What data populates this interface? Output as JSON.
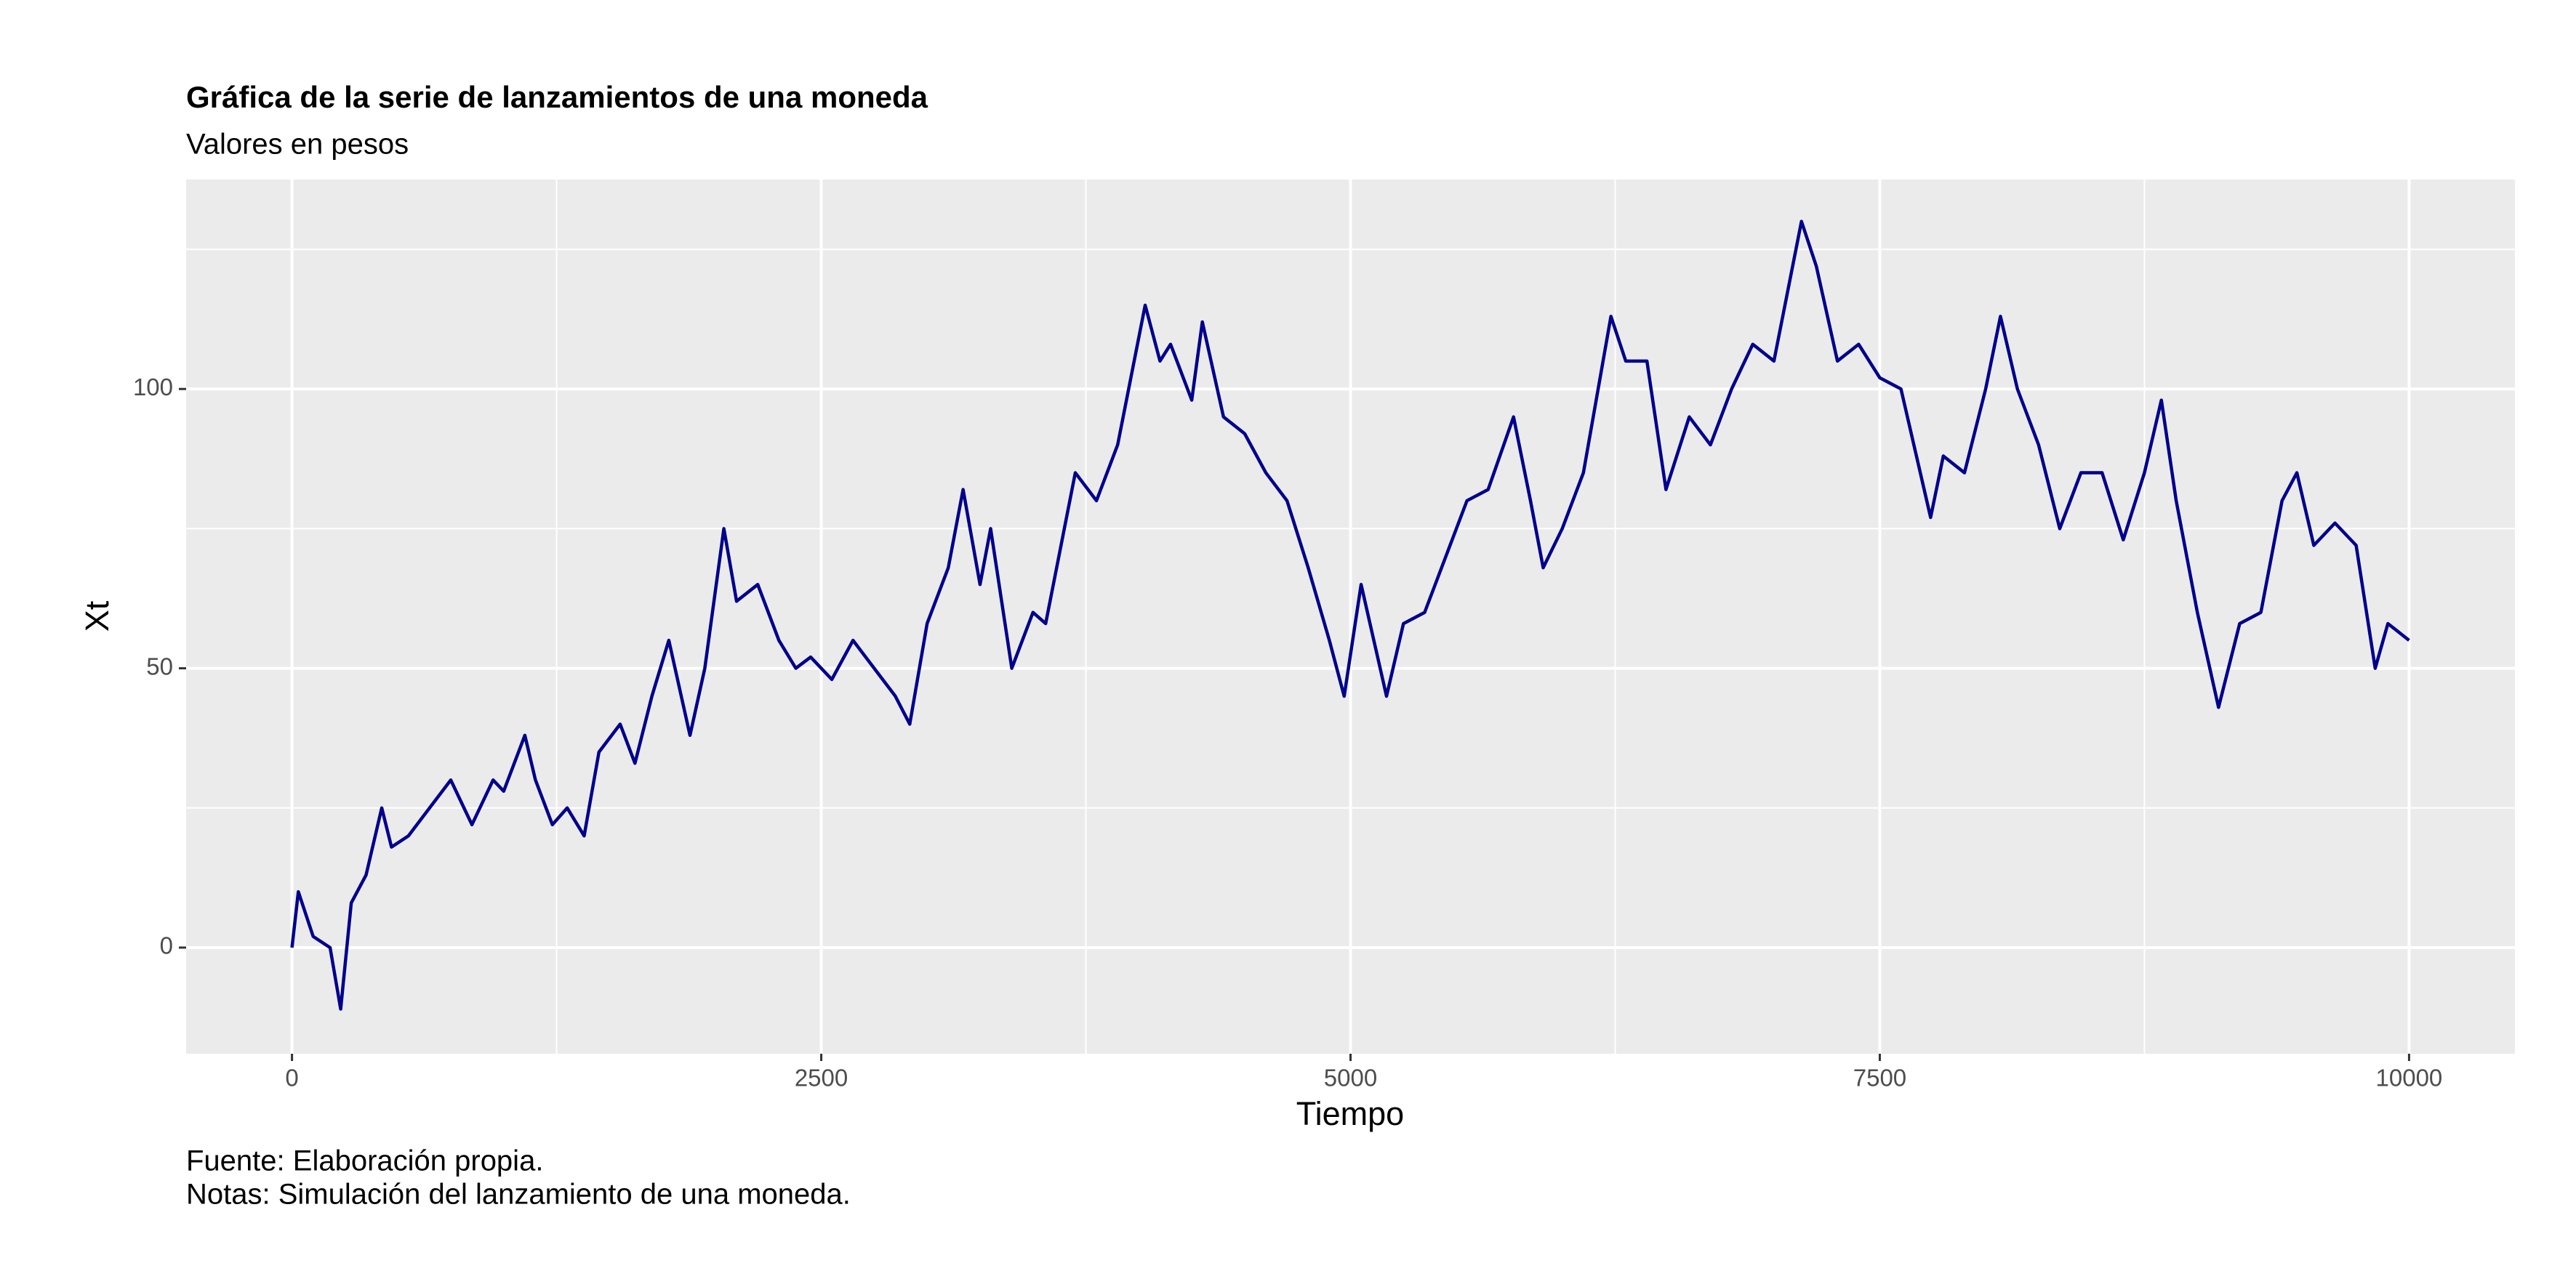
{
  "chart_data": {
    "type": "line",
    "title": "Gráfica de la serie de lanzamientos de una moneda",
    "subtitle": "Valores en pesos",
    "x_label": "Tiempo",
    "y_label": "Xt",
    "caption": [
      "Fuente: Elaboración propia.",
      "Notas: Simulación del lanzamiento de una moneda."
    ],
    "x": [
      0,
      30,
      100,
      180,
      230,
      280,
      350,
      424,
      470,
      550,
      650,
      750,
      850,
      950,
      1000,
      1100,
      1150,
      1230,
      1300,
      1380,
      1450,
      1550,
      1620,
      1700,
      1780,
      1880,
      1950,
      2040,
      2100,
      2200,
      2300,
      2380,
      2450,
      2550,
      2650,
      2750,
      2850,
      2918,
      3000,
      3100,
      3170,
      3250,
      3300,
      3400,
      3500,
      3560,
      3700,
      3800,
      3900,
      4030,
      4100,
      4150,
      4250,
      4300,
      4400,
      4500,
      4600,
      4700,
      4800,
      4900,
      4970,
      5050,
      5170,
      5250,
      5350,
      5450,
      5550,
      5650,
      5770,
      5850,
      5910,
      6000,
      6100,
      6230,
      6300,
      6400,
      6490,
      6600,
      6700,
      6800,
      6900,
      7000,
      7130,
      7200,
      7300,
      7400,
      7500,
      7600,
      7740,
      7800,
      7900,
      8000,
      8070,
      8150,
      8250,
      8350,
      8450,
      8550,
      8650,
      8750,
      8830,
      8900,
      9000,
      9100,
      9200,
      9300,
      9400,
      9470,
      9550,
      9650,
      9750,
      9840,
      9900,
      10000
    ],
    "series": [
      {
        "name": "Xt",
        "color": "#00008b",
        "values": [
          0,
          10,
          2,
          0,
          -11,
          8,
          13,
          25,
          18,
          20,
          25,
          30,
          22,
          30,
          28,
          38,
          30,
          22,
          25,
          20,
          35,
          40,
          33,
          45,
          55,
          38,
          50,
          75,
          62,
          65,
          55,
          50,
          52,
          48,
          55,
          50,
          45,
          40,
          58,
          68,
          82,
          65,
          75,
          50,
          60,
          58,
          85,
          80,
          90,
          115,
          105,
          108,
          98,
          112,
          95,
          92,
          85,
          80,
          68,
          55,
          45,
          65,
          45,
          58,
          60,
          70,
          80,
          82,
          95,
          80,
          68,
          75,
          85,
          113,
          105,
          105,
          82,
          95,
          90,
          100,
          108,
          105,
          130,
          122,
          105,
          108,
          102,
          100,
          77,
          88,
          85,
          100,
          113,
          100,
          90,
          75,
          85,
          85,
          73,
          85,
          98,
          80,
          60,
          43,
          58,
          60,
          80,
          85,
          72,
          76,
          72,
          50,
          58,
          55
        ]
      }
    ],
    "xlim": [
      -500,
      10500
    ],
    "ylim": [
      -19,
      137.5
    ],
    "xticks": [
      0,
      2500,
      5000,
      7500,
      10000
    ],
    "yticks": [
      0,
      50,
      100
    ],
    "grid": true
  }
}
